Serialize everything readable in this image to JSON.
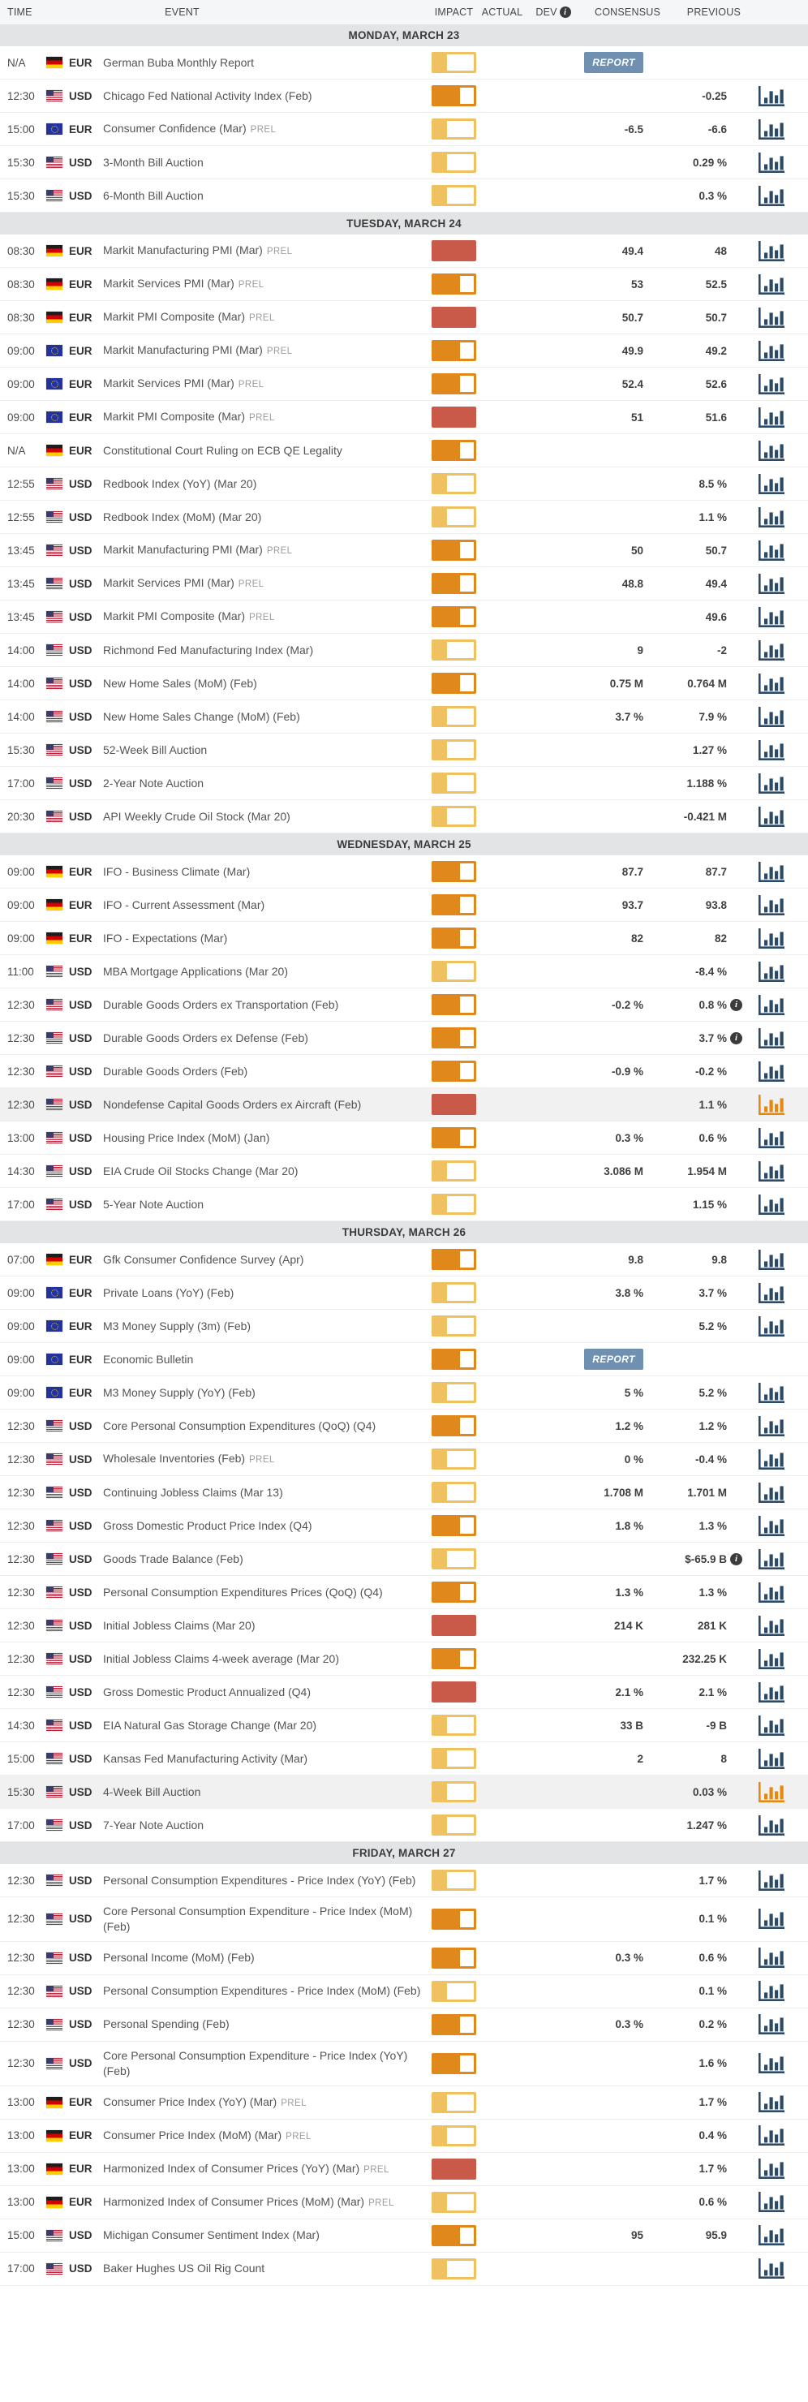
{
  "colors": {
    "impact_low": "#f0c161",
    "impact_medium": "#e0881c",
    "impact_high": "#c95a4a",
    "chart_icon_blue": "#2b4a68",
    "chart_icon_orange": "#e8890f",
    "report_badge_bg": "#6f90b1",
    "day_band_bg": "#e3e4e6",
    "header_bg": "#f5f6f7",
    "row_highlight_bg": "#f1f1f2"
  },
  "icons": {
    "info_glyph": "i"
  },
  "table": {
    "columns": {
      "time": "TIME",
      "event": "EVENT",
      "impact": "IMPACT",
      "actual": "ACTUAL",
      "dev": "DEV",
      "consensus": "CONSENSUS",
      "previous": "PREVIOUS"
    },
    "days": [
      {
        "label": "MONDAY, MARCH 23",
        "rows": [
          {
            "time": "N/A",
            "flag": "de",
            "currency": "EUR",
            "event": "German Buba Monthly Report",
            "impact": "low",
            "badge": "REPORT",
            "chart_icon": "none"
          },
          {
            "time": "12:30",
            "flag": "us",
            "currency": "USD",
            "event": "Chicago Fed National Activity Index (Feb)",
            "impact": "medium",
            "previous": "-0.25",
            "chart_icon": "blue"
          },
          {
            "time": "15:00",
            "flag": "eu",
            "currency": "EUR",
            "event": "Consumer Confidence (Mar)",
            "prel": "PREL",
            "impact": "low",
            "consensus": "-6.5",
            "previous": "-6.6",
            "chart_icon": "blue"
          },
          {
            "time": "15:30",
            "flag": "us",
            "currency": "USD",
            "event": "3-Month Bill Auction",
            "impact": "low",
            "previous": "0.29 %",
            "chart_icon": "blue"
          },
          {
            "time": "15:30",
            "flag": "us",
            "currency": "USD",
            "event": "6-Month Bill Auction",
            "impact": "low",
            "previous": "0.3 %",
            "chart_icon": "blue"
          }
        ]
      },
      {
        "label": "TUESDAY, MARCH 24",
        "rows": [
          {
            "time": "08:30",
            "flag": "de",
            "currency": "EUR",
            "event": "Markit Manufacturing PMI (Mar)",
            "prel": "PREL",
            "impact": "high",
            "consensus": "49.4",
            "previous": "48",
            "chart_icon": "blue"
          },
          {
            "time": "08:30",
            "flag": "de",
            "currency": "EUR",
            "event": "Markit Services PMI (Mar)",
            "prel": "PREL",
            "impact": "medium",
            "consensus": "53",
            "previous": "52.5",
            "chart_icon": "blue"
          },
          {
            "time": "08:30",
            "flag": "de",
            "currency": "EUR",
            "event": "Markit PMI Composite (Mar)",
            "prel": "PREL",
            "impact": "high",
            "consensus": "50.7",
            "previous": "50.7",
            "chart_icon": "blue"
          },
          {
            "time": "09:00",
            "flag": "eu",
            "currency": "EUR",
            "event": "Markit Manufacturing PMI (Mar)",
            "prel": "PREL",
            "impact": "medium",
            "consensus": "49.9",
            "previous": "49.2",
            "chart_icon": "blue"
          },
          {
            "time": "09:00",
            "flag": "eu",
            "currency": "EUR",
            "event": "Markit Services PMI (Mar)",
            "prel": "PREL",
            "impact": "medium",
            "consensus": "52.4",
            "previous": "52.6",
            "chart_icon": "blue"
          },
          {
            "time": "09:00",
            "flag": "eu",
            "currency": "EUR",
            "event": "Markit PMI Composite (Mar)",
            "prel": "PREL",
            "impact": "high",
            "consensus": "51",
            "previous": "51.6",
            "chart_icon": "blue"
          },
          {
            "time": "N/A",
            "flag": "de",
            "currency": "EUR",
            "event": "Constitutional Court Ruling on ECB QE Legality",
            "impact": "medium",
            "chart_icon": "blue"
          },
          {
            "time": "12:55",
            "flag": "us",
            "currency": "USD",
            "event": "Redbook Index (YoY) (Mar 20)",
            "impact": "low",
            "previous": "8.5 %",
            "chart_icon": "blue"
          },
          {
            "time": "12:55",
            "flag": "us",
            "currency": "USD",
            "event": "Redbook Index (MoM) (Mar 20)",
            "impact": "low",
            "previous": "1.1 %",
            "chart_icon": "blue"
          },
          {
            "time": "13:45",
            "flag": "us",
            "currency": "USD",
            "event": "Markit Manufacturing PMI (Mar)",
            "prel": "PREL",
            "impact": "medium",
            "consensus": "50",
            "previous": "50.7",
            "chart_icon": "blue"
          },
          {
            "time": "13:45",
            "flag": "us",
            "currency": "USD",
            "event": "Markit Services PMI (Mar)",
            "prel": "PREL",
            "impact": "medium",
            "consensus": "48.8",
            "previous": "49.4",
            "chart_icon": "blue"
          },
          {
            "time": "13:45",
            "flag": "us",
            "currency": "USD",
            "event": "Markit PMI Composite (Mar)",
            "prel": "PREL",
            "impact": "medium",
            "previous": "49.6",
            "chart_icon": "blue"
          },
          {
            "time": "14:00",
            "flag": "us",
            "currency": "USD",
            "event": "Richmond Fed Manufacturing Index (Mar)",
            "impact": "low",
            "consensus": "9",
            "previous": "-2",
            "chart_icon": "blue"
          },
          {
            "time": "14:00",
            "flag": "us",
            "currency": "USD",
            "event": "New Home Sales (MoM) (Feb)",
            "impact": "medium",
            "consensus": "0.75 M",
            "previous": "0.764 M",
            "chart_icon": "blue"
          },
          {
            "time": "14:00",
            "flag": "us",
            "currency": "USD",
            "event": "New Home Sales Change (MoM) (Feb)",
            "impact": "low",
            "consensus": "3.7 %",
            "previous": "7.9 %",
            "chart_icon": "blue"
          },
          {
            "time": "15:30",
            "flag": "us",
            "currency": "USD",
            "event": "52-Week Bill Auction",
            "impact": "low",
            "previous": "1.27 %",
            "chart_icon": "blue"
          },
          {
            "time": "17:00",
            "flag": "us",
            "currency": "USD",
            "event": "2-Year Note Auction",
            "impact": "low",
            "previous": "1.188 %",
            "chart_icon": "blue"
          },
          {
            "time": "20:30",
            "flag": "us",
            "currency": "USD",
            "event": "API Weekly Crude Oil Stock (Mar 20)",
            "impact": "low",
            "previous": "-0.421 M",
            "chart_icon": "blue"
          }
        ]
      },
      {
        "label": "WEDNESDAY, MARCH 25",
        "rows": [
          {
            "time": "09:00",
            "flag": "de",
            "currency": "EUR",
            "event": "IFO - Business Climate (Mar)",
            "impact": "medium",
            "consensus": "87.7",
            "previous": "87.7",
            "chart_icon": "blue"
          },
          {
            "time": "09:00",
            "flag": "de",
            "currency": "EUR",
            "event": "IFO - Current Assessment (Mar)",
            "impact": "medium",
            "consensus": "93.7",
            "previous": "93.8",
            "chart_icon": "blue"
          },
          {
            "time": "09:00",
            "flag": "de",
            "currency": "EUR",
            "event": "IFO - Expectations (Mar)",
            "impact": "medium",
            "consensus": "82",
            "previous": "82",
            "chart_icon": "blue"
          },
          {
            "time": "11:00",
            "flag": "us",
            "currency": "USD",
            "event": "MBA Mortgage Applications (Mar 20)",
            "impact": "low",
            "previous": "-8.4 %",
            "chart_icon": "blue"
          },
          {
            "time": "12:30",
            "flag": "us",
            "currency": "USD",
            "event": "Durable Goods Orders ex Transportation (Feb)",
            "impact": "medium",
            "consensus": "-0.2 %",
            "previous": "0.8 %",
            "previous_info": true,
            "chart_icon": "blue"
          },
          {
            "time": "12:30",
            "flag": "us",
            "currency": "USD",
            "event": "Durable Goods Orders ex Defense (Feb)",
            "impact": "medium",
            "previous": "3.7 %",
            "previous_info": true,
            "chart_icon": "blue"
          },
          {
            "time": "12:30",
            "flag": "us",
            "currency": "USD",
            "event": "Durable Goods Orders (Feb)",
            "impact": "medium",
            "consensus": "-0.9 %",
            "previous": "-0.2 %",
            "chart_icon": "blue"
          },
          {
            "time": "12:30",
            "flag": "us",
            "currency": "USD",
            "event": "Nondefense Capital Goods Orders ex Aircraft (Feb)",
            "impact": "high",
            "previous": "1.1 %",
            "chart_icon": "orange",
            "highlighted": true
          },
          {
            "time": "13:00",
            "flag": "us",
            "currency": "USD",
            "event": "Housing Price Index (MoM) (Jan)",
            "impact": "medium",
            "consensus": "0.3 %",
            "previous": "0.6 %",
            "chart_icon": "blue"
          },
          {
            "time": "14:30",
            "flag": "us",
            "currency": "USD",
            "event": "EIA Crude Oil Stocks Change (Mar 20)",
            "impact": "low",
            "consensus": "3.086 M",
            "previous": "1.954 M",
            "chart_icon": "blue"
          },
          {
            "time": "17:00",
            "flag": "us",
            "currency": "USD",
            "event": "5-Year Note Auction",
            "impact": "low",
            "previous": "1.15 %",
            "chart_icon": "blue"
          }
        ]
      },
      {
        "label": "THURSDAY, MARCH 26",
        "rows": [
          {
            "time": "07:00",
            "flag": "de",
            "currency": "EUR",
            "event": "Gfk Consumer Confidence Survey (Apr)",
            "impact": "medium",
            "consensus": "9.8",
            "previous": "9.8",
            "chart_icon": "blue"
          },
          {
            "time": "09:00",
            "flag": "eu",
            "currency": "EUR",
            "event": "Private Loans (YoY) (Feb)",
            "impact": "low",
            "consensus": "3.8 %",
            "previous": "3.7 %",
            "chart_icon": "blue"
          },
          {
            "time": "09:00",
            "flag": "eu",
            "currency": "EUR",
            "event": "M3 Money Supply (3m) (Feb)",
            "impact": "low",
            "previous": "5.2 %",
            "chart_icon": "blue"
          },
          {
            "time": "09:00",
            "flag": "eu",
            "currency": "EUR",
            "event": "Economic Bulletin",
            "impact": "medium",
            "badge": "REPORT",
            "chart_icon": "none"
          },
          {
            "time": "09:00",
            "flag": "eu",
            "currency": "EUR",
            "event": "M3 Money Supply (YoY) (Feb)",
            "impact": "low",
            "consensus": "5 %",
            "previous": "5.2 %",
            "chart_icon": "blue"
          },
          {
            "time": "12:30",
            "flag": "us",
            "currency": "USD",
            "event": "Core Personal Consumption Expenditures (QoQ) (Q4)",
            "impact": "medium",
            "consensus": "1.2 %",
            "previous": "1.2 %",
            "chart_icon": "blue"
          },
          {
            "time": "12:30",
            "flag": "us",
            "currency": "USD",
            "event": "Wholesale Inventories (Feb)",
            "prel": "PREL",
            "impact": "low",
            "consensus": "0 %",
            "previous": "-0.4 %",
            "chart_icon": "blue"
          },
          {
            "time": "12:30",
            "flag": "us",
            "currency": "USD",
            "event": "Continuing Jobless Claims (Mar 13)",
            "impact": "low",
            "consensus": "1.708 M",
            "previous": "1.701 M",
            "chart_icon": "blue"
          },
          {
            "time": "12:30",
            "flag": "us",
            "currency": "USD",
            "event": "Gross Domestic Product Price Index (Q4)",
            "impact": "medium",
            "consensus": "1.8 %",
            "previous": "1.3 %",
            "chart_icon": "blue"
          },
          {
            "time": "12:30",
            "flag": "us",
            "currency": "USD",
            "event": "Goods Trade Balance (Feb)",
            "impact": "low",
            "previous": "$-65.9 B",
            "previous_info": true,
            "chart_icon": "blue"
          },
          {
            "time": "12:30",
            "flag": "us",
            "currency": "USD",
            "event": "Personal Consumption Expenditures Prices (QoQ) (Q4)",
            "impact": "medium",
            "consensus": "1.3 %",
            "previous": "1.3 %",
            "chart_icon": "blue"
          },
          {
            "time": "12:30",
            "flag": "us",
            "currency": "USD",
            "event": "Initial Jobless Claims (Mar 20)",
            "impact": "high",
            "consensus": "214 K",
            "previous": "281 K",
            "chart_icon": "blue"
          },
          {
            "time": "12:30",
            "flag": "us",
            "currency": "USD",
            "event": "Initial Jobless Claims 4-week average (Mar 20)",
            "impact": "medium",
            "previous": "232.25 K",
            "chart_icon": "blue"
          },
          {
            "time": "12:30",
            "flag": "us",
            "currency": "USD",
            "event": "Gross Domestic Product Annualized (Q4)",
            "impact": "high",
            "consensus": "2.1 %",
            "previous": "2.1 %",
            "chart_icon": "blue"
          },
          {
            "time": "14:30",
            "flag": "us",
            "currency": "USD",
            "event": "EIA Natural Gas Storage Change (Mar 20)",
            "impact": "low",
            "consensus": "33 B",
            "previous": "-9 B",
            "chart_icon": "blue"
          },
          {
            "time": "15:00",
            "flag": "us",
            "currency": "USD",
            "event": "Kansas Fed Manufacturing Activity (Mar)",
            "impact": "low",
            "consensus": "2",
            "previous": "8",
            "chart_icon": "blue"
          },
          {
            "time": "15:30",
            "flag": "us",
            "currency": "USD",
            "event": "4-Week Bill Auction",
            "impact": "low",
            "previous": "0.03 %",
            "chart_icon": "orange",
            "highlighted": true
          },
          {
            "time": "17:00",
            "flag": "us",
            "currency": "USD",
            "event": "7-Year Note Auction",
            "impact": "low",
            "previous": "1.247 %",
            "chart_icon": "blue"
          }
        ]
      },
      {
        "label": "FRIDAY, MARCH 27",
        "rows": [
          {
            "time": "12:30",
            "flag": "us",
            "currency": "USD",
            "event": "Personal Consumption Expenditures - Price Index (YoY) (Feb)",
            "impact": "low",
            "previous": "1.7 %",
            "chart_icon": "blue"
          },
          {
            "time": "12:30",
            "flag": "us",
            "currency": "USD",
            "event": "Core Personal Consumption Expenditure - Price Index (MoM) (Feb)",
            "impact": "medium",
            "previous": "0.1 %",
            "chart_icon": "blue"
          },
          {
            "time": "12:30",
            "flag": "us",
            "currency": "USD",
            "event": "Personal Income (MoM) (Feb)",
            "impact": "medium",
            "consensus": "0.3 %",
            "previous": "0.6 %",
            "chart_icon": "blue"
          },
          {
            "time": "12:30",
            "flag": "us",
            "currency": "USD",
            "event": "Personal Consumption Expenditures - Price Index (MoM) (Feb)",
            "impact": "low",
            "previous": "0.1 %",
            "chart_icon": "blue"
          },
          {
            "time": "12:30",
            "flag": "us",
            "currency": "USD",
            "event": "Personal Spending (Feb)",
            "impact": "medium",
            "consensus": "0.3 %",
            "previous": "0.2 %",
            "chart_icon": "blue"
          },
          {
            "time": "12:30",
            "flag": "us",
            "currency": "USD",
            "event": "Core Personal Consumption Expenditure - Price Index (YoY) (Feb)",
            "impact": "medium",
            "previous": "1.6 %",
            "chart_icon": "blue"
          },
          {
            "time": "13:00",
            "flag": "de",
            "currency": "EUR",
            "event": "Consumer Price Index (YoY) (Mar)",
            "prel": "PREL",
            "impact": "low",
            "previous": "1.7 %",
            "chart_icon": "blue"
          },
          {
            "time": "13:00",
            "flag": "de",
            "currency": "EUR",
            "event": "Consumer Price Index (MoM) (Mar)",
            "prel": "PREL",
            "impact": "low",
            "previous": "0.4 %",
            "chart_icon": "blue"
          },
          {
            "time": "13:00",
            "flag": "de",
            "currency": "EUR",
            "event": "Harmonized Index of Consumer Prices (YoY) (Mar)",
            "prel": "PREL",
            "impact": "high",
            "previous": "1.7 %",
            "chart_icon": "blue"
          },
          {
            "time": "13:00",
            "flag": "de",
            "currency": "EUR",
            "event": "Harmonized Index of Consumer Prices (MoM) (Mar)",
            "prel": "PREL",
            "impact": "low",
            "previous": "0.6 %",
            "chart_icon": "blue"
          },
          {
            "time": "15:00",
            "flag": "us",
            "currency": "USD",
            "event": "Michigan Consumer Sentiment Index (Mar)",
            "impact": "medium",
            "consensus": "95",
            "previous": "95.9",
            "chart_icon": "blue"
          },
          {
            "time": "17:00",
            "flag": "us",
            "currency": "USD",
            "event": "Baker Hughes US Oil Rig Count",
            "impact": "low",
            "chart_icon": "blue"
          }
        ]
      }
    ]
  }
}
